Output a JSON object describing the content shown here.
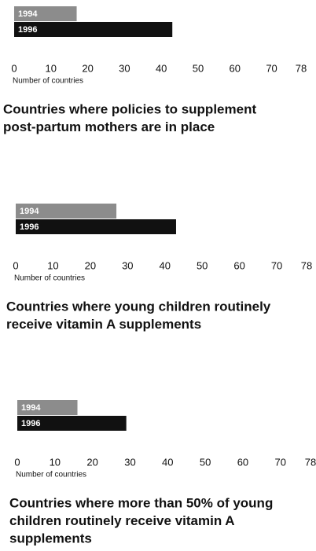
{
  "chart_data": [
    {
      "type": "bar",
      "title": [
        "Countries where policies to supplement",
        "post-partum mothers are in place"
      ],
      "xlabel": "Number of countries",
      "series": [
        {
          "name": "1994",
          "color": "#8c8c8c",
          "values": [
            17
          ]
        },
        {
          "name": "1996",
          "color": "#111111",
          "values": [
            43
          ]
        }
      ],
      "xlim": [
        0,
        78
      ],
      "xticks": [
        0,
        10,
        20,
        30,
        40,
        50,
        60,
        70,
        78
      ]
    },
    {
      "type": "bar",
      "title": [
        "Countries where young children routinely",
        "receive vitamin A supplements"
      ],
      "xlabel": "Number of countries",
      "series": [
        {
          "name": "1994",
          "color": "#8c8c8c",
          "values": [
            27
          ]
        },
        {
          "name": "1996",
          "color": "#111111",
          "values": [
            43
          ]
        }
      ],
      "xlim": [
        0,
        78
      ],
      "xticks": [
        0,
        10,
        20,
        30,
        40,
        50,
        60,
        70,
        78
      ]
    },
    {
      "type": "bar",
      "title": [
        "Countries where more than 50% of young",
        "children routinely receive vitamin A",
        "supplements"
      ],
      "xlabel": "Number of countries",
      "series": [
        {
          "name": "1994",
          "color": "#8c8c8c",
          "values": [
            16
          ]
        },
        {
          "name": "1996",
          "color": "#111111",
          "values": [
            29
          ]
        }
      ],
      "xlim": [
        0,
        78
      ],
      "xticks": [
        0,
        10,
        20,
        30,
        40,
        50,
        60,
        70,
        78
      ]
    }
  ]
}
